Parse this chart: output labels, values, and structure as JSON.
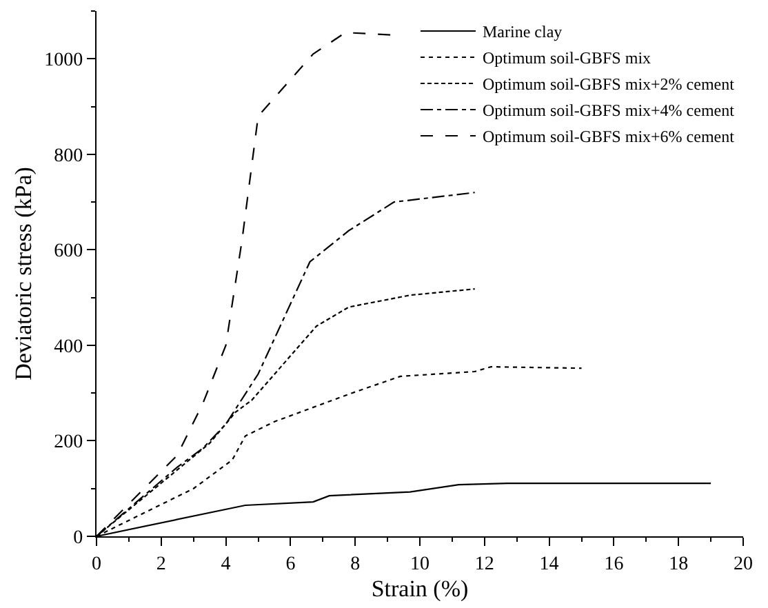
{
  "chart_data": {
    "type": "line",
    "xlabel": "Strain (%)",
    "ylabel": "Deviatoric stress (kPa)",
    "xlim": [
      0,
      20
    ],
    "xticks": [
      0,
      2,
      4,
      6,
      8,
      10,
      12,
      14,
      16,
      18,
      20
    ],
    "ylim": [
      0,
      1100
    ],
    "yticks": [
      0,
      200,
      400,
      600,
      800,
      1000
    ],
    "legend": "top right",
    "marker": "none",
    "series": [
      {
        "name": "Marine clay",
        "color": "#000000",
        "line_style": "solid",
        "x": [
          0,
          4.6,
          6.7,
          7.2,
          9.7,
          11.2,
          12.7,
          19
        ],
        "values": [
          0,
          65,
          72,
          85,
          93,
          108,
          111,
          111
        ]
      },
      {
        "name": "Optimum soil-GBFS mix",
        "color": "#000000",
        "line_style": "dotted",
        "x": [
          0,
          3,
          4.2,
          4.6,
          5.5,
          7.9,
          9.4,
          11.7,
          12.2,
          15
        ],
        "values": [
          0,
          100,
          160,
          210,
          240,
          300,
          335,
          345,
          355,
          352
        ]
      },
      {
        "name": "Optimum soil-GBFS mix+2% cement",
        "color": "#000000",
        "line_style": "shortdash",
        "x": [
          0,
          3.5,
          4.3,
          4.8,
          6.8,
          7.8,
          9.7,
          11.7
        ],
        "values": [
          0,
          195,
          260,
          285,
          440,
          480,
          505,
          518
        ]
      },
      {
        "name": "Optimum soil-GBFS mix+4% cement",
        "color": "#000000",
        "line_style": "dashdot",
        "x": [
          0,
          2.5,
          3.3,
          4,
          5,
          6.6,
          7.8,
          9.2,
          11.7
        ],
        "values": [
          0,
          145,
          185,
          235,
          340,
          575,
          640,
          700,
          720
        ]
      },
      {
        "name": "Optimum soil-GBFS mix+6% cement",
        "color": "#000000",
        "line_style": "dashed",
        "x": [
          0,
          2.5,
          3.3,
          4,
          4.5,
          5,
          6.7,
          7.7,
          9.1
        ],
        "values": [
          0,
          170,
          280,
          400,
          620,
          880,
          1010,
          1055,
          1050
        ]
      }
    ]
  }
}
